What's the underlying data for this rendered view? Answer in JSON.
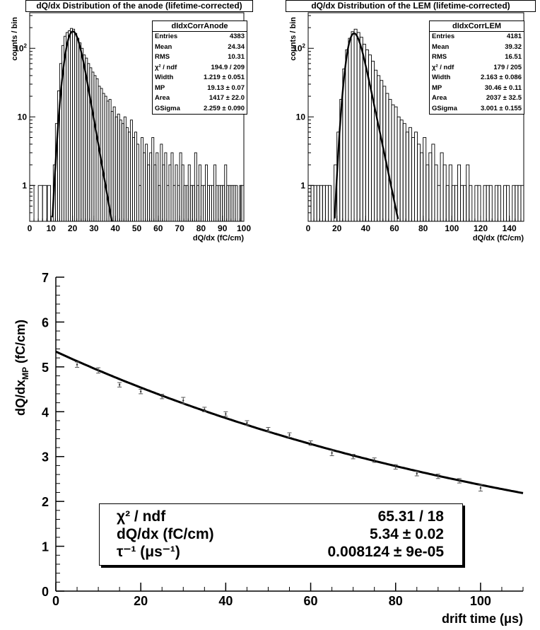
{
  "panels": [
    {
      "title": "dQ/dx Distribution of the anode (lifetime-corrected)",
      "ylabel": "counts / bin",
      "xlabel": "dQ/dx (fC/cm)",
      "xticks": [
        "0",
        "10",
        "20",
        "30",
        "40",
        "50",
        "60",
        "70",
        "80",
        "90",
        "100"
      ],
      "yticks": [
        "1",
        "10",
        "10²"
      ],
      "stats": {
        "name": "dIdxCorrAnode",
        "rows": [
          {
            "label": "Entries",
            "value": "4383"
          },
          {
            "label": "Mean",
            "value": "24.34"
          },
          {
            "label": "RMS",
            "value": "10.31"
          },
          {
            "label": "χ² / ndf",
            "value": "194.9 / 209"
          },
          {
            "label": "Width",
            "value": "1.219 ± 0.051"
          },
          {
            "label": "MP",
            "value": "19.13 ± 0.07"
          },
          {
            "label": "Area",
            "value": "1417 ± 22.0"
          },
          {
            "label": "GSigma",
            "value": "2.259 ± 0.090"
          }
        ]
      }
    },
    {
      "title": "dQ/dx Distribution of the LEM (lifetime-corrected)",
      "ylabel": "counts / bin",
      "xlabel": "dQ/dx (fC/cm)",
      "xticks": [
        "0",
        "20",
        "40",
        "60",
        "80",
        "100",
        "120",
        "140"
      ],
      "yticks": [
        "1",
        "10",
        "10²"
      ],
      "stats": {
        "name": "dIdxCorrLEM",
        "rows": [
          {
            "label": "Entries",
            "value": "4181"
          },
          {
            "label": "Mean",
            "value": "39.32"
          },
          {
            "label": "RMS",
            "value": "16.51"
          },
          {
            "label": "χ² / ndf",
            "value": "179 / 205"
          },
          {
            "label": "Width",
            "value": "2.163 ± 0.086"
          },
          {
            "label": "MP",
            "value": "30.46 ± 0.11"
          },
          {
            "label": "Area",
            "value": "2037 ± 32.5"
          },
          {
            "label": "GSigma",
            "value": "3.001 ± 0.155"
          }
        ]
      }
    }
  ],
  "bottom": {
    "ylabel_main": "dQ/dx",
    "ylabel_sub": "MP",
    "ylabel_unit": " (fC/cm)",
    "xlabel": "drift time (μs)",
    "xticks": [
      "0",
      "20",
      "40",
      "60",
      "80",
      "100"
    ],
    "yticks": [
      "0",
      "1",
      "2",
      "3",
      "4",
      "5",
      "6",
      "7"
    ],
    "fit": [
      {
        "label": "χ² / ndf",
        "value": "65.31 / 18"
      },
      {
        "label": "dQ/dx (fC/cm)",
        "value": "5.34 ± 0.02"
      },
      {
        "label": "τ⁻¹ (μs⁻¹)",
        "value": "0.008124 ± 9e-05"
      }
    ]
  },
  "chart_data": [
    {
      "type": "histogram",
      "title": "dQ/dx Distribution of the anode (lifetime-corrected)",
      "xlabel": "dQ/dx (fC/cm)",
      "ylabel": "counts / bin",
      "xlim": [
        0,
        100
      ],
      "ylim": [
        0.3,
        330
      ],
      "log_y": true,
      "grid": false,
      "fit": "Landau ⊗ Gauss",
      "fit_params": {
        "Width": 1.219,
        "MP": 19.13,
        "Area": 1417,
        "GSigma": 2.259
      },
      "x": [
        1,
        3,
        5,
        7,
        9,
        10.5,
        11.5,
        12.5,
        13.5,
        14.5,
        15.5,
        16.5,
        17.5,
        18.5,
        19.5,
        20.5,
        21.5,
        22.5,
        23.5,
        24.5,
        25.5,
        26.5,
        27.5,
        28.5,
        29.5,
        30.5,
        31.5,
        32.5,
        33.5,
        34.5,
        35.5,
        36.5,
        37.5,
        38.5,
        39.5,
        40.5,
        41.5,
        42.5,
        43.5,
        44.5,
        45.5,
        46.5,
        47.5,
        48.5,
        49.5,
        50.5,
        51.5,
        52.5,
        53.5,
        54.5,
        55.5,
        56.5,
        57.5,
        58.5,
        59.5,
        60.5,
        61.5,
        62.5,
        63.5,
        64.5,
        65.5,
        66.5,
        67.5,
        68.5,
        69.5,
        70.5,
        71.5,
        72.5,
        73.5,
        74.5,
        75.5,
        76.5,
        77.5,
        78.5,
        79.5,
        80.5,
        81.5,
        82.5,
        83.5,
        84.5,
        85.5,
        86.5,
        87.5,
        88.5,
        89.5,
        90.5,
        91.5,
        92.5,
        93.5,
        94.5,
        95.5,
        96.5,
        97.5,
        98.5,
        99.5
      ],
      "values": [
        1,
        0,
        1,
        1,
        1,
        0,
        2,
        8,
        24,
        60,
        110,
        150,
        170,
        180,
        195,
        190,
        165,
        140,
        120,
        100,
        80,
        72,
        60,
        52,
        45,
        40,
        36,
        28,
        26,
        22,
        20,
        17,
        18,
        12,
        14,
        10,
        11,
        9,
        8,
        10,
        7,
        6,
        9,
        5,
        6,
        4,
        1,
        5,
        3,
        4,
        2,
        3,
        5,
        2,
        3,
        1,
        4,
        2,
        3,
        1,
        2,
        3,
        1,
        2,
        1,
        3,
        2,
        1,
        1,
        2,
        1,
        1,
        3,
        1,
        2,
        1,
        1,
        2,
        1,
        1,
        1,
        2,
        1,
        1,
        1,
        1,
        2,
        1,
        1,
        1,
        1,
        1,
        0,
        1,
        1
      ]
    },
    {
      "type": "histogram",
      "title": "dQ/dx Distribution of the LEM (lifetime-corrected)",
      "xlabel": "dQ/dx (fC/cm)",
      "ylabel": "counts / bin",
      "xlim": [
        0,
        150
      ],
      "ylim": [
        0.3,
        330
      ],
      "log_y": true,
      "grid": false,
      "fit": "Landau ⊗ Gauss",
      "fit_params": {
        "Width": 2.163,
        "MP": 30.46,
        "Area": 2037,
        "GSigma": 3.001
      },
      "x": [
        1,
        3,
        5,
        7,
        9,
        11,
        13,
        15,
        17,
        19,
        21,
        23,
        25,
        27,
        29,
        31,
        33,
        35,
        37,
        39,
        41,
        43,
        45,
        47,
        49,
        51,
        53,
        55,
        57,
        59,
        61,
        63,
        65,
        67,
        69,
        71,
        73,
        75,
        77,
        79,
        81,
        83,
        85,
        87,
        89,
        91,
        93,
        95,
        97,
        99,
        101,
        103,
        105,
        107,
        109,
        111,
        113,
        115,
        117,
        119,
        121,
        123,
        125,
        127,
        129,
        131,
        133,
        135,
        137,
        139,
        141,
        143,
        145,
        147,
        149
      ],
      "values": [
        1,
        1,
        1,
        1,
        1,
        1,
        1,
        1,
        0,
        2,
        6,
        18,
        50,
        95,
        140,
        175,
        190,
        170,
        145,
        115,
        95,
        80,
        65,
        48,
        40,
        34,
        28,
        22,
        18,
        15,
        14,
        10,
        9,
        8,
        6,
        7,
        5,
        6,
        4,
        3,
        5,
        2,
        3,
        4,
        2,
        1,
        3,
        2,
        1,
        2,
        1,
        1,
        2,
        1,
        1,
        2,
        1,
        0,
        1,
        1,
        0,
        1,
        1,
        1,
        0,
        1,
        1,
        0,
        1,
        1,
        0,
        1,
        1,
        1,
        1
      ]
    },
    {
      "type": "scatter",
      "xlabel": "drift time (μs)",
      "ylabel": "dQ/dx_MP (fC/cm)",
      "xlim": [
        0,
        110
      ],
      "ylim": [
        0,
        7
      ],
      "grid": false,
      "x": [
        5,
        10,
        15,
        20,
        25,
        30,
        35,
        40,
        45,
        50,
        55,
        60,
        65,
        70,
        75,
        80,
        85,
        90,
        95,
        100
      ],
      "values": [
        5.05,
        4.92,
        4.6,
        4.45,
        4.34,
        4.25,
        4.05,
        3.95,
        3.75,
        3.6,
        3.48,
        3.3,
        3.08,
        3.0,
        2.92,
        2.77,
        2.62,
        2.56,
        2.46,
        2.3
      ],
      "errors": [
        0.06,
        0.06,
        0.05,
        0.05,
        0.05,
        0.07,
        0.05,
        0.05,
        0.05,
        0.05,
        0.05,
        0.05,
        0.06,
        0.05,
        0.05,
        0.05,
        0.05,
        0.05,
        0.05,
        0.07
      ],
      "fit": {
        "function": "exponential",
        "A": 5.34,
        "tau_inv": 0.008124
      }
    }
  ]
}
